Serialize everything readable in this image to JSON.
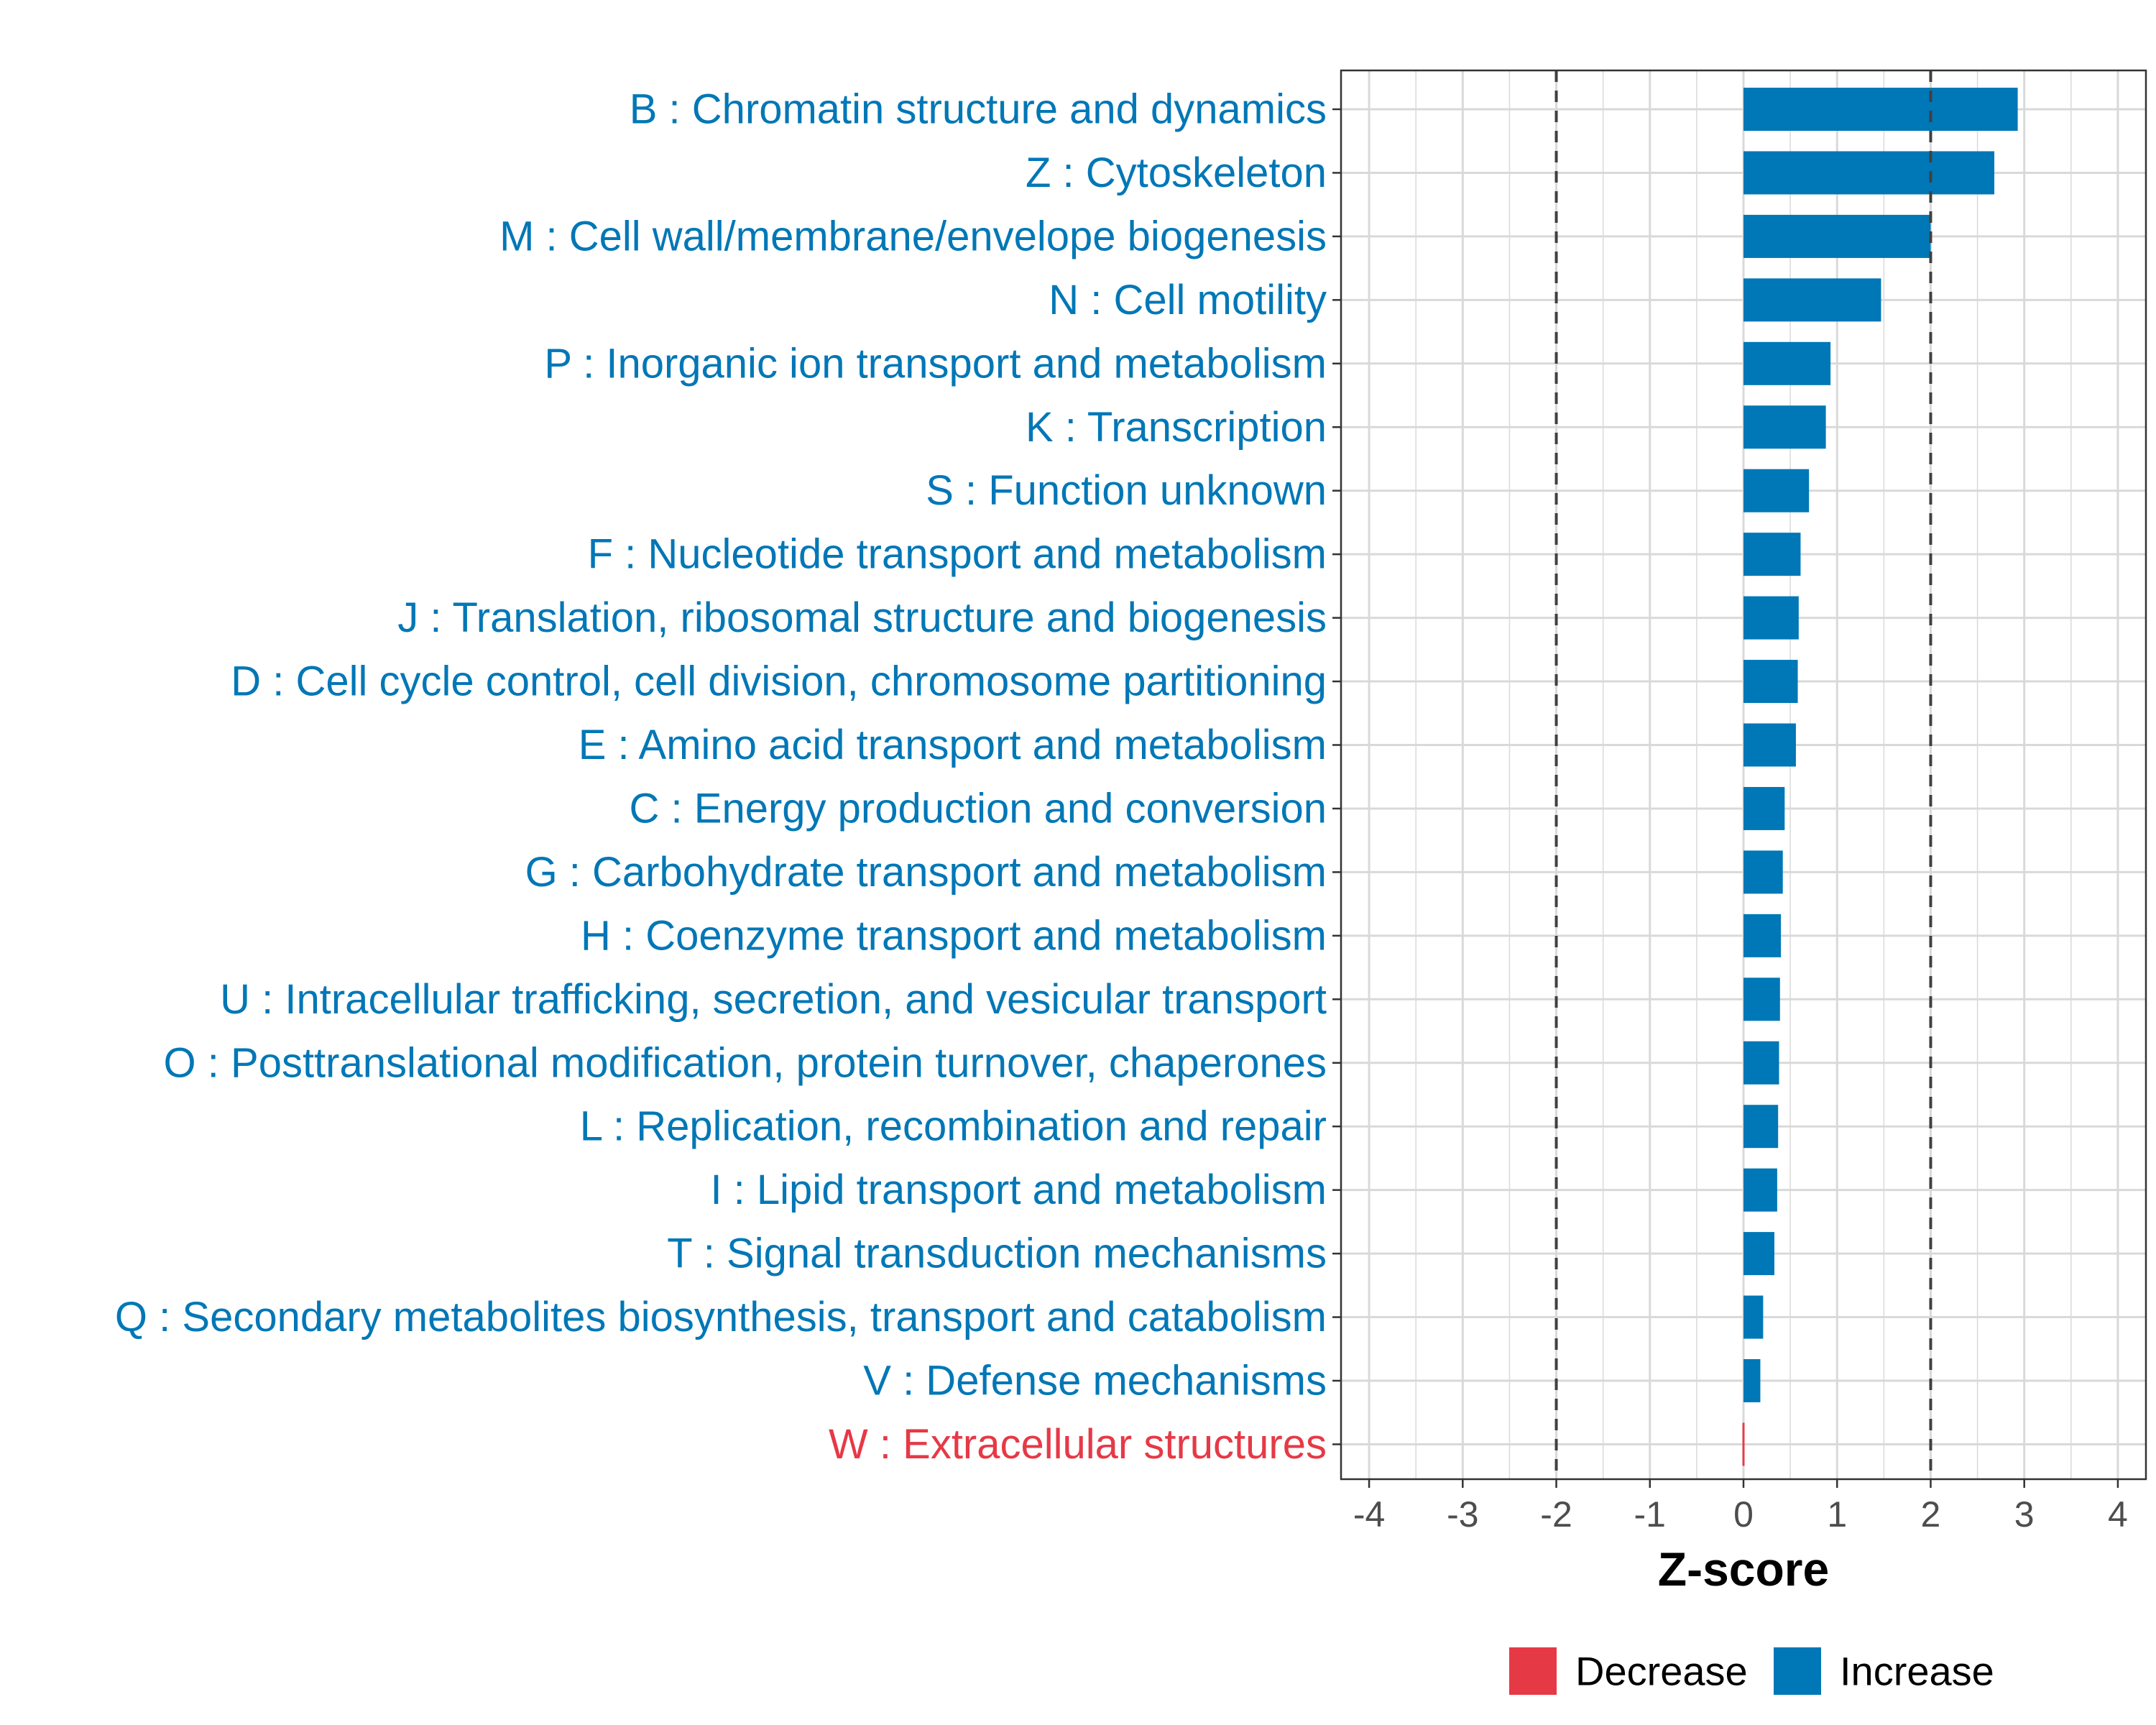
{
  "chart_data": {
    "type": "bar",
    "orientation": "horizontal",
    "xlabel": "Z-score",
    "xlim": [
      -4.3,
      4.3
    ],
    "xticks": [
      -4,
      -3,
      -2,
      -1,
      0,
      1,
      2,
      3,
      4
    ],
    "xtick_labels": [
      "-4",
      "-3",
      "-2",
      "-1",
      "0",
      "1",
      "2",
      "3",
      "4"
    ],
    "reference_lines": [
      -2,
      2
    ],
    "categories": [
      {
        "label": "B : Chromatin structure and dynamics",
        "value": 2.93,
        "direction": "Increase"
      },
      {
        "label": "Z : Cytoskeleton",
        "value": 2.68,
        "direction": "Increase"
      },
      {
        "label": "M : Cell wall/membrane/envelope biogenesis",
        "value": 2.0,
        "direction": "Increase"
      },
      {
        "label": "N : Cell motility",
        "value": 1.47,
        "direction": "Increase"
      },
      {
        "label": "P : Inorganic ion transport and metabolism",
        "value": 0.93,
        "direction": "Increase"
      },
      {
        "label": "K : Transcription",
        "value": 0.88,
        "direction": "Increase"
      },
      {
        "label": "S : Function unknown",
        "value": 0.7,
        "direction": "Increase"
      },
      {
        "label": "F : Nucleotide transport and metabolism",
        "value": 0.61,
        "direction": "Increase"
      },
      {
        "label": "J : Translation, ribosomal structure and biogenesis",
        "value": 0.59,
        "direction": "Increase"
      },
      {
        "label": "D : Cell cycle control, cell division, chromosome partitioning",
        "value": 0.58,
        "direction": "Increase"
      },
      {
        "label": "E : Amino acid transport and metabolism",
        "value": 0.56,
        "direction": "Increase"
      },
      {
        "label": "C : Energy production and conversion",
        "value": 0.44,
        "direction": "Increase"
      },
      {
        "label": "G : Carbohydrate transport and metabolism",
        "value": 0.42,
        "direction": "Increase"
      },
      {
        "label": "H : Coenzyme transport and metabolism",
        "value": 0.4,
        "direction": "Increase"
      },
      {
        "label": "U : Intracellular trafficking, secretion, and vesicular transport",
        "value": 0.39,
        "direction": "Increase"
      },
      {
        "label": "O : Posttranslational modification, protein turnover, chaperones",
        "value": 0.38,
        "direction": "Increase"
      },
      {
        "label": "L : Replication, recombination and repair",
        "value": 0.37,
        "direction": "Increase"
      },
      {
        "label": "I : Lipid transport and metabolism",
        "value": 0.36,
        "direction": "Increase"
      },
      {
        "label": "T : Signal transduction mechanisms",
        "value": 0.33,
        "direction": "Increase"
      },
      {
        "label": "Q : Secondary metabolites biosynthesis, transport and catabolism",
        "value": 0.21,
        "direction": "Increase"
      },
      {
        "label": "V : Defense mechanisms",
        "value": 0.18,
        "direction": "Increase"
      },
      {
        "label": "W : Extracellular structures",
        "value": -0.02,
        "direction": "Decrease"
      }
    ],
    "legend": [
      {
        "label": "Decrease",
        "color": "#e63946"
      },
      {
        "label": "Increase",
        "color": "#0077b6"
      }
    ],
    "legend_position": "bottom"
  },
  "colors": {
    "increase": "#0077b6",
    "decrease": "#e63946",
    "grid": "#d9d9d9",
    "reference_line": "#404040"
  }
}
